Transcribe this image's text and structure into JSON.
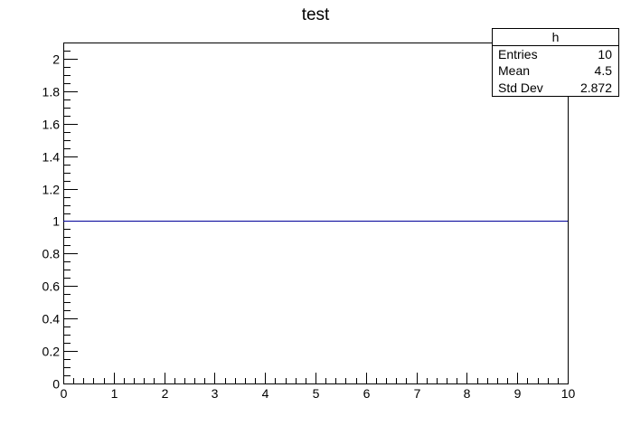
{
  "chart_data": {
    "type": "line",
    "title": "test",
    "xlabel": "",
    "ylabel": "",
    "xlim": [
      0,
      10
    ],
    "ylim": [
      0,
      2.1
    ],
    "grid": false,
    "x_ticks": [
      "0",
      "1",
      "2",
      "3",
      "4",
      "5",
      "6",
      "7",
      "8",
      "9",
      "10"
    ],
    "y_ticks": [
      "0",
      "0.2",
      "0.4",
      "0.6",
      "0.8",
      "1",
      "1.2",
      "1.4",
      "1.6",
      "1.8",
      "2"
    ],
    "series": [
      {
        "x": [
          0,
          1,
          2,
          3,
          4,
          5,
          6,
          7,
          8,
          9,
          10
        ],
        "y": [
          1,
          1,
          1,
          1,
          1,
          1,
          1,
          1,
          1,
          1,
          1
        ],
        "color": "#000099"
      }
    ],
    "stats_box": {
      "name": "h",
      "placement": "top-right",
      "rows": [
        {
          "label": "Entries",
          "value": "10"
        },
        {
          "label": "Mean",
          "value": "4.5"
        },
        {
          "label": "Std Dev",
          "value": "2.872"
        }
      ]
    }
  }
}
